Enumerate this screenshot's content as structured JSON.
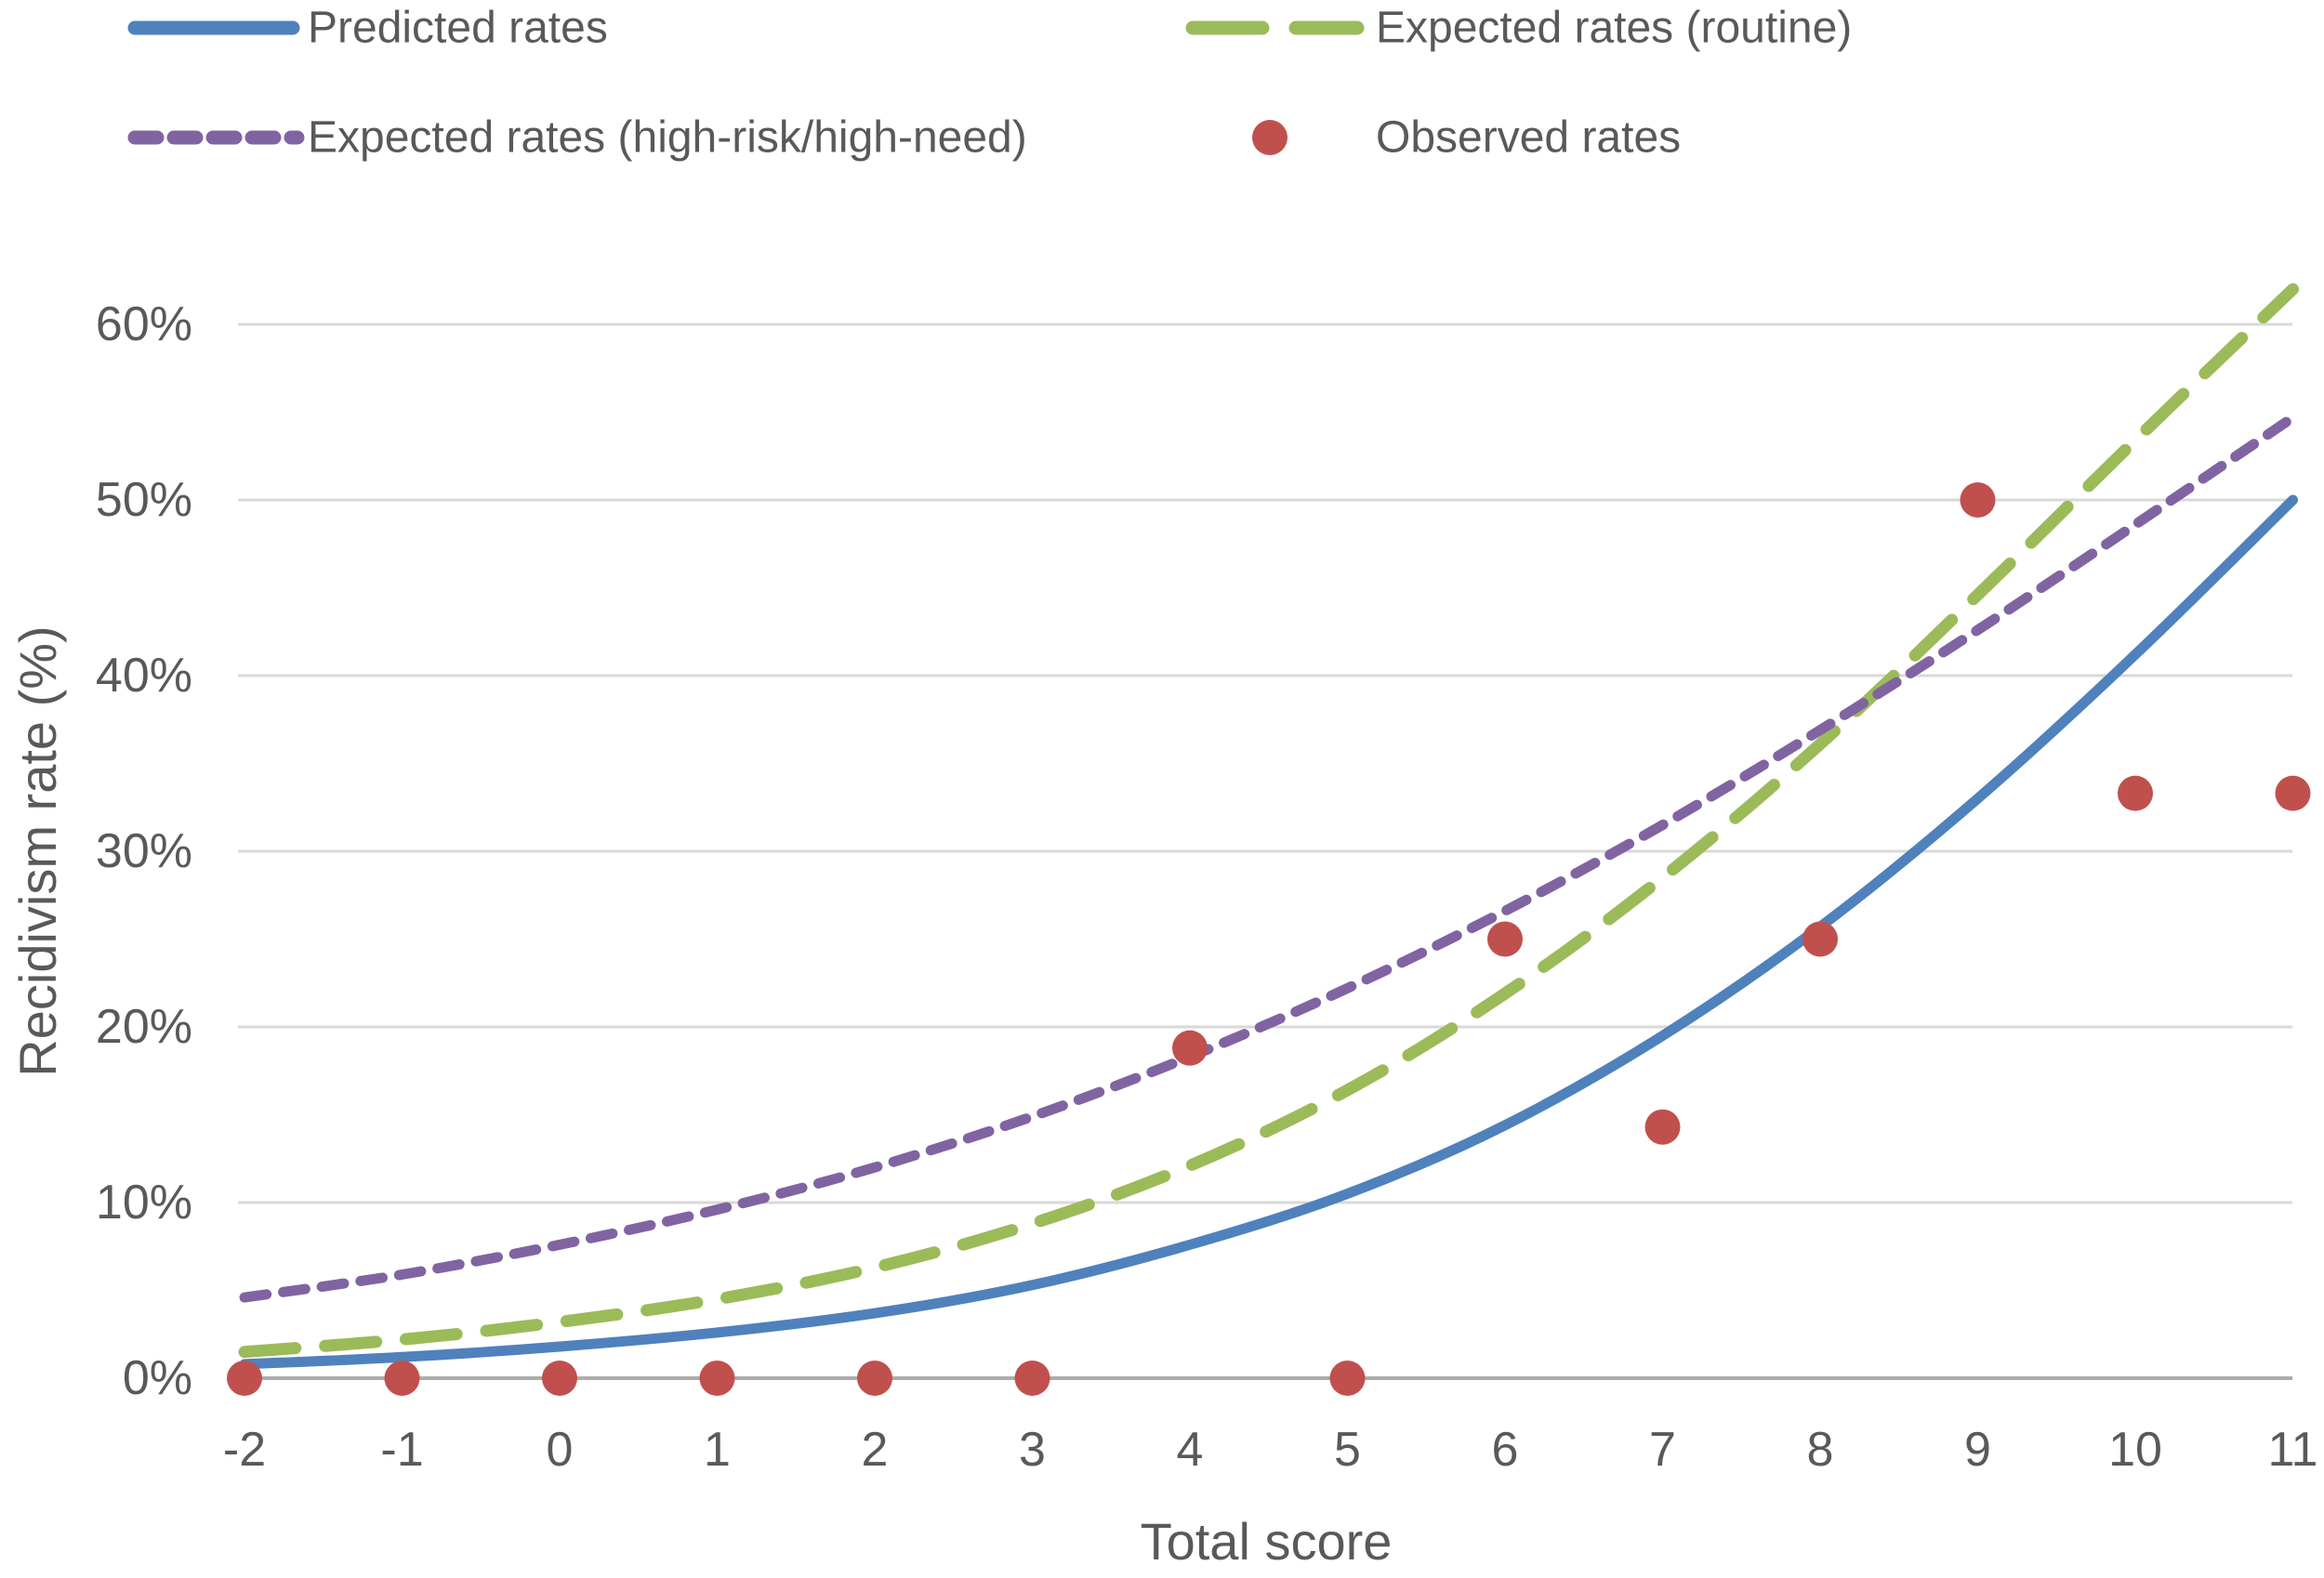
{
  "chart_data": {
    "type": "line",
    "title": "",
    "xlabel": "Total score",
    "ylabel": "Recidivism rate (%)",
    "x": [
      -2,
      -1,
      0,
      1,
      2,
      3,
      4,
      5,
      6,
      7,
      8,
      9,
      10,
      11
    ],
    "x_tick_labels": [
      "-2",
      "-1",
      "0",
      "1",
      "2",
      "3",
      "4",
      "5",
      "6",
      "7",
      "8",
      "9",
      "10",
      "11"
    ],
    "y_ticks": [
      0,
      10,
      20,
      30,
      40,
      50,
      60
    ],
    "y_tick_labels": [
      "0%",
      "10%",
      "20%",
      "30%",
      "40%",
      "50%",
      "60%"
    ],
    "ylim": [
      0,
      62
    ],
    "grid": true,
    "legend_position": "top",
    "series": [
      {
        "name": "Predicted rates",
        "type": "line",
        "line_style": "solid",
        "color": "#4F81BD",
        "values": [
          0.8,
          1.2,
          1.8,
          2.6,
          3.7,
          5.3,
          7.6,
          10.5,
          14.4,
          19.5,
          25.7,
          33.0,
          41.2,
          50.0
        ]
      },
      {
        "name": "Expected rates (routine)",
        "type": "line",
        "line_style": "long-dash",
        "color": "#9BBB59",
        "values": [
          1.5,
          2.2,
          3.2,
          4.5,
          6.3,
          8.8,
          12.1,
          16.4,
          21.9,
          28.5,
          36.1,
          44.6,
          53.4,
          62.0
        ]
      },
      {
        "name": "Expected rates (high-risk/high-need)",
        "type": "line",
        "line_style": "short-dash",
        "color": "#8064A2",
        "values": [
          4.6,
          5.9,
          7.6,
          9.6,
          12.0,
          14.9,
          18.3,
          22.2,
          26.6,
          31.5,
          36.9,
          42.6,
          48.6,
          54.7
        ]
      },
      {
        "name": "Observed rates",
        "type": "scatter",
        "color": "#C0504D",
        "values": [
          0,
          0,
          0,
          0,
          0,
          0,
          18.8,
          0,
          25.0,
          14.3,
          25.0,
          50.0,
          33.3,
          33.3
        ]
      }
    ],
    "colors": {
      "gridline": "#D9D9D9",
      "axis_line": "#ADADAD",
      "text": "#595959",
      "background": "#FFFFFF"
    }
  }
}
